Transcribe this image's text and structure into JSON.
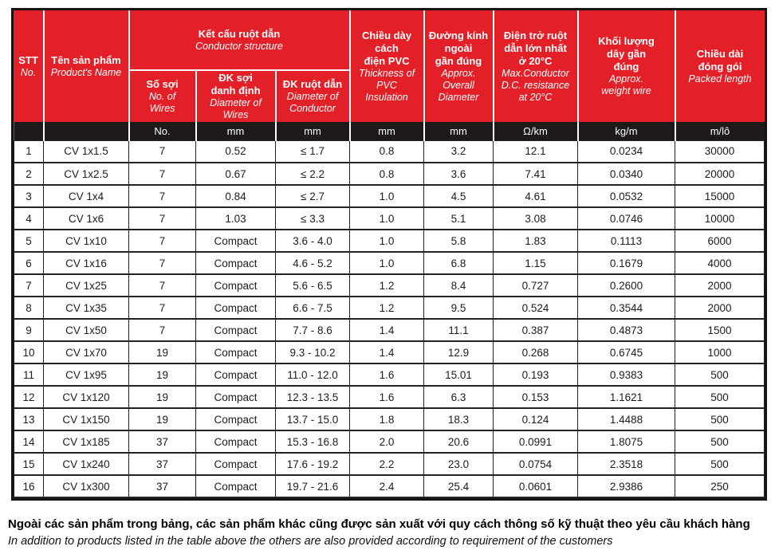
{
  "colors": {
    "header_red": "#e32028",
    "band_black": "#1e1a1b",
    "border_black": "#161314"
  },
  "table": {
    "header": {
      "stt": {
        "vi": "STT",
        "en": "No."
      },
      "product": {
        "vi": "Tên sản phẩm",
        "en": "Product's Name"
      },
      "conductor_group": {
        "vi": "Kết cấu ruột dẫn",
        "en": "Conductor structure"
      },
      "wires": {
        "vi": "Số sợi",
        "en": "No. of\nWires"
      },
      "wire_diameter": {
        "vi": "ĐK sợi\ndanh định",
        "en": "Diameter of\nWires"
      },
      "conductor_diameter": {
        "vi": "ĐK ruột dẫn",
        "en": "Diameter of\nConductor"
      },
      "insulation": {
        "vi": "Chiều dày cách\nđiện PVC",
        "en": "Thickness of\nPVC\nInsulation"
      },
      "overall_diameter": {
        "vi": "Đường kính\nngoài\ngần đúng",
        "en": "Approx.\nOverall\nDiameter"
      },
      "resistance": {
        "vi": "Điện trở ruột\ndẫn lớn nhất\nở 20°C",
        "en": "Max.Conductor\nD.C. resistance\nat 20°C"
      },
      "weight": {
        "vi": "Khối lượng\ndây gần\nđúng",
        "en": "Approx.\nweight wire"
      },
      "packed_length": {
        "vi": "Chiều dài\nđóng gói",
        "en": "Packed length"
      }
    },
    "units": [
      "",
      "",
      "No.",
      "mm",
      "mm",
      "mm",
      "mm",
      "Ω/km",
      "kg/m",
      "m/lô"
    ],
    "rows": [
      [
        "1",
        "CV 1x1.5",
        "7",
        "0.52",
        "≤ 1.7",
        "0.8",
        "3.2",
        "12.1",
        "0.0234",
        "30000"
      ],
      [
        "2",
        "CV 1x2.5",
        "7",
        "0.67",
        "≤ 2.2",
        "0.8",
        "3.6",
        "7.41",
        "0.0340",
        "20000"
      ],
      [
        "3",
        "CV 1x4",
        "7",
        "0.84",
        "≤ 2.7",
        "1.0",
        "4.5",
        "4.61",
        "0.0532",
        "15000"
      ],
      [
        "4",
        "CV 1x6",
        "7",
        "1.03",
        "≤ 3.3",
        "1.0",
        "5.1",
        "3.08",
        "0.0746",
        "10000"
      ],
      [
        "5",
        "CV 1x10",
        "7",
        "Compact",
        "3.6 - 4.0",
        "1.0",
        "5.8",
        "1.83",
        "0.1113",
        "6000"
      ],
      [
        "6",
        "CV 1x16",
        "7",
        "Compact",
        "4.6 - 5.2",
        "1.0",
        "6.8",
        "1.15",
        "0.1679",
        "4000"
      ],
      [
        "7",
        "CV 1x25",
        "7",
        "Compact",
        "5.6 - 6.5",
        "1.2",
        "8.4",
        "0.727",
        "0.2600",
        "2000"
      ],
      [
        "8",
        "CV 1x35",
        "7",
        "Compact",
        "6.6 - 7.5",
        "1.2",
        "9.5",
        "0.524",
        "0.3544",
        "2000"
      ],
      [
        "9",
        "CV 1x50",
        "7",
        "Compact",
        "7.7 - 8.6",
        "1.4",
        "11.1",
        "0.387",
        "0.4873",
        "1500"
      ],
      [
        "10",
        "CV 1x70",
        "19",
        "Compact",
        "9.3 - 10.2",
        "1.4",
        "12.9",
        "0.268",
        "0.6745",
        "1000"
      ],
      [
        "11",
        "CV 1x95",
        "19",
        "Compact",
        "11.0 - 12.0",
        "1.6",
        "15.01",
        "0.193",
        "0.9383",
        "500"
      ],
      [
        "12",
        "CV 1x120",
        "19",
        "Compact",
        "12.3 - 13.5",
        "1.6",
        "6.3",
        "0.153",
        "1.1621",
        "500"
      ],
      [
        "13",
        "CV 1x150",
        "19",
        "Compact",
        "13.7 - 15.0",
        "1.8",
        "18.3",
        "0.124",
        "1.4488",
        "500"
      ],
      [
        "14",
        "CV 1x185",
        "37",
        "Compact",
        "15.3 - 16.8",
        "2.0",
        "20.6",
        "0.0991",
        "1.8075",
        "500"
      ],
      [
        "15",
        "CV 1x240",
        "37",
        "Compact",
        "17.6 - 19.2",
        "2.2",
        "23.0",
        "0.0754",
        "2.3518",
        "500"
      ],
      [
        "16",
        "CV 1x300",
        "37",
        "Compact",
        "19.7 - 21.6",
        "2.4",
        "25.4",
        "0.0601",
        "2.9386",
        "250"
      ]
    ]
  },
  "footer": {
    "vi": "Ngoài các sản phẩm trong bảng, các sản phẩm khác cũng được sản xuất với quy cách thông số kỹ thuật  theo yêu cầu khách hàng",
    "en": "In addition to products listed in the table above the others are also provided according to requirement of the customers"
  }
}
